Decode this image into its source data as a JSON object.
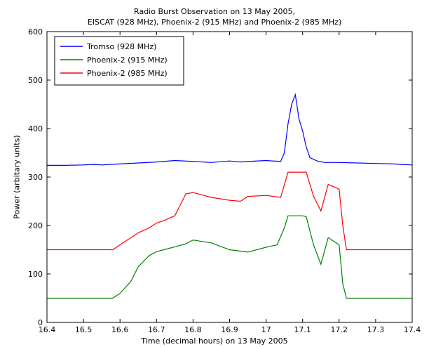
{
  "chart_data": {
    "type": "line",
    "title": [
      "Radio Burst Observation on 13 May 2005,",
      "EISCAT (928 MHz), Phoenix-2 (915 MHz) and Phoenix-2 (985 MHz)"
    ],
    "xlabel": "Time (decimal hours) on 13 May 2005",
    "ylabel": "Power (arbitary units)",
    "xlim": [
      16.4,
      17.4
    ],
    "ylim": [
      0,
      600
    ],
    "xticks": [
      "16.4",
      "16.5",
      "16.6",
      "16.7",
      "16.8",
      "16.9",
      "17",
      "17.1",
      "17.2",
      "17.3",
      "17.4"
    ],
    "yticks": [
      "0",
      "100",
      "200",
      "300",
      "400",
      "500",
      "600"
    ],
    "grid": false,
    "legend_position": "top-left",
    "series": [
      {
        "name": "Tromso (928 MHz)",
        "color": "#0000ff",
        "x": [
          16.4,
          16.45,
          16.5,
          16.53,
          16.55,
          16.6,
          16.65,
          16.7,
          16.75,
          16.8,
          16.85,
          16.9,
          16.93,
          16.95,
          17.0,
          17.04,
          17.05,
          17.06,
          17.07,
          17.08,
          17.09,
          17.1,
          17.11,
          17.12,
          17.14,
          17.16,
          17.2,
          17.25,
          17.3,
          17.35,
          17.37,
          17.4
        ],
        "y": [
          324,
          324,
          325,
          326,
          325,
          327,
          329,
          331,
          334,
          332,
          330,
          333,
          331,
          332,
          334,
          332,
          350,
          410,
          450,
          470,
          420,
          395,
          362,
          340,
          333,
          330,
          330,
          329,
          328,
          327,
          326,
          325
        ]
      },
      {
        "name": "Phoenix-2 (915 MHz)",
        "color": "#008000",
        "x": [
          16.4,
          16.42,
          16.45,
          16.5,
          16.55,
          16.58,
          16.6,
          16.63,
          16.65,
          16.68,
          16.7,
          16.72,
          16.75,
          16.78,
          16.8,
          16.85,
          16.9,
          16.95,
          17.0,
          17.03,
          17.05,
          17.06,
          17.08,
          17.1,
          17.11,
          17.13,
          17.15,
          17.17,
          17.2,
          17.21,
          17.22,
          17.25,
          17.3,
          17.35,
          17.4
        ],
        "y": [
          50,
          50,
          50,
          50,
          50,
          50,
          60,
          85,
          115,
          138,
          146,
          150,
          156,
          162,
          170,
          164,
          150,
          145,
          155,
          160,
          195,
          220,
          220,
          220,
          218,
          160,
          120,
          175,
          160,
          80,
          50,
          50,
          50,
          50,
          50
        ]
      },
      {
        "name": "Phoenix-2 (985 MHz)",
        "color": "#ff0000",
        "x": [
          16.4,
          16.45,
          16.5,
          16.55,
          16.58,
          16.6,
          16.63,
          16.65,
          16.68,
          16.7,
          16.72,
          16.75,
          16.78,
          16.8,
          16.85,
          16.9,
          16.93,
          16.95,
          17.0,
          17.04,
          17.06,
          17.1,
          17.11,
          17.13,
          17.15,
          17.17,
          17.2,
          17.21,
          17.22,
          17.25,
          17.3,
          17.35,
          17.4
        ],
        "y": [
          150,
          150,
          150,
          150,
          150,
          160,
          175,
          185,
          195,
          205,
          210,
          220,
          265,
          268,
          258,
          252,
          250,
          260,
          262,
          258,
          310,
          310,
          310,
          260,
          230,
          285,
          275,
          200,
          150,
          150,
          150,
          150,
          150
        ]
      }
    ]
  }
}
